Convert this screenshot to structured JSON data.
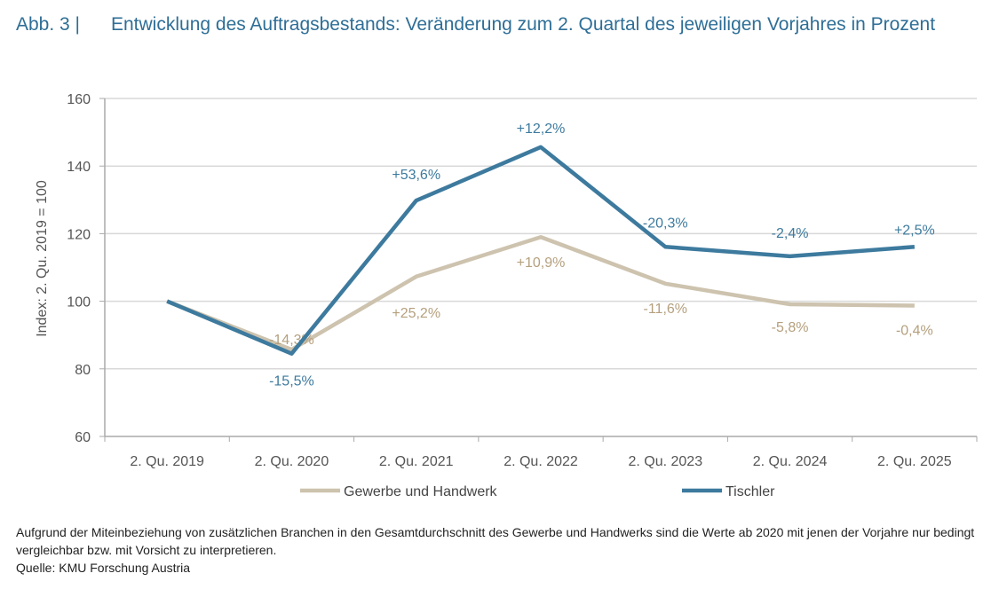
{
  "figure_label": "Abb. 3 |",
  "title": "Entwicklung des Auftragsbestands: Veränderung zum 2. Quartal des jeweiligen Vorjahres in Prozent",
  "footnote": "Aufgrund der Miteinbeziehung von zusätzlichen Branchen in den Gesamtdurchschnitt des Gewerbe und Handwerks sind die Werte ab 2020 mit jenen der Vorjahre nur bedingt vergleichbar bzw. mit Vorsicht zu interpretieren.",
  "source": "Quelle: KMU Forschung Austria",
  "colors": {
    "title": "#2e6e96",
    "tischler": "#3d7a9e",
    "gewerbe": "#cdc3ae",
    "grid": "#d9d9d9"
  },
  "chart_data": {
    "type": "line",
    "ylabel": "Index: 2. Qu. 2019 = 100",
    "ylim": [
      60,
      160
    ],
    "yticks": [
      "60",
      "80",
      "100",
      "120",
      "140",
      "160"
    ],
    "grid": true,
    "legend_placement": "bottom",
    "categories": [
      "2. Qu. 2019",
      "2. Qu. 2020",
      "2. Qu. 2021",
      "2. Qu. 2022",
      "2. Qu. 2023",
      "2. Qu. 2024",
      "2. Qu. 2025"
    ],
    "series": [
      {
        "name": "Gewerbe und Handwerk",
        "color": "#cdc3ae",
        "label_color": "#b5a07e",
        "values": [
          100,
          85.7,
          107.3,
          119.0,
          105.2,
          99.1,
          98.7
        ],
        "labels": [
          "",
          "-14,3%",
          "+25,2%",
          "+10,9%",
          "-11,6%",
          "-5,8%",
          "-0,4%"
        ]
      },
      {
        "name": "Tischler",
        "color": "#3d7a9e",
        "label_color": "#3d7a9e",
        "values": [
          100,
          84.5,
          129.8,
          145.6,
          116.1,
          113.3,
          116.1
        ],
        "labels": [
          "",
          "-15,5%",
          "+53,6%",
          "+12,2%",
          "-20,3%",
          "-2,4%",
          "+2,5%"
        ]
      }
    ]
  }
}
